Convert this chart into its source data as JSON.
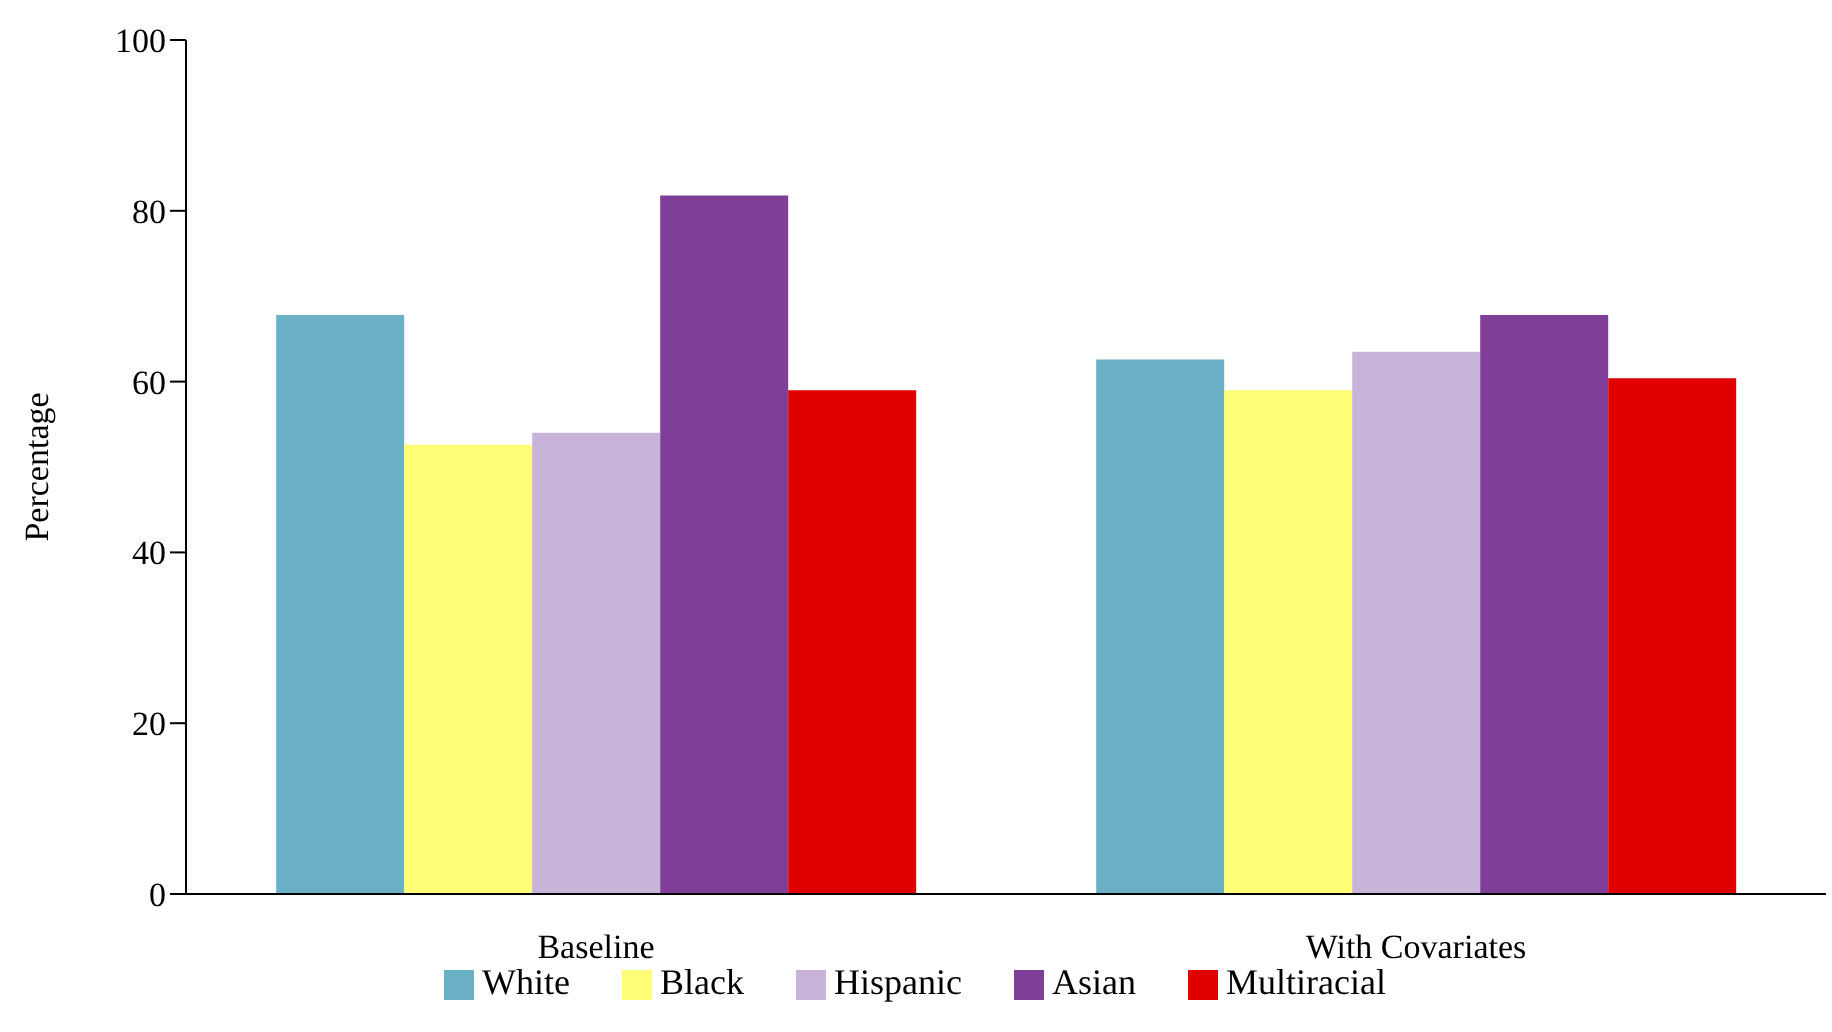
{
  "chart_data": {
    "type": "bar",
    "ylabel": "Percentage",
    "categories": [
      "Baseline",
      "With Covariates"
    ],
    "series": [
      {
        "name": "White",
        "color": "#6ab1c8",
        "values": [
          67.8,
          62.6
        ]
      },
      {
        "name": "Black",
        "color": "#ffff77",
        "values": [
          52.6,
          59.0
        ]
      },
      {
        "name": "Hispanic",
        "color": "#c8b4d8",
        "values": [
          54.0,
          63.5
        ]
      },
      {
        "name": "Asian",
        "color": "#7f3f98",
        "values": [
          81.8,
          67.8
        ]
      },
      {
        "name": "Multiracial",
        "color": "#e00000",
        "values": [
          59.0,
          60.4
        ]
      }
    ],
    "ylim": [
      0,
      100
    ],
    "yticks": [
      0,
      20,
      40,
      60,
      80,
      100
    ],
    "grid": false,
    "legend": "bottom"
  }
}
